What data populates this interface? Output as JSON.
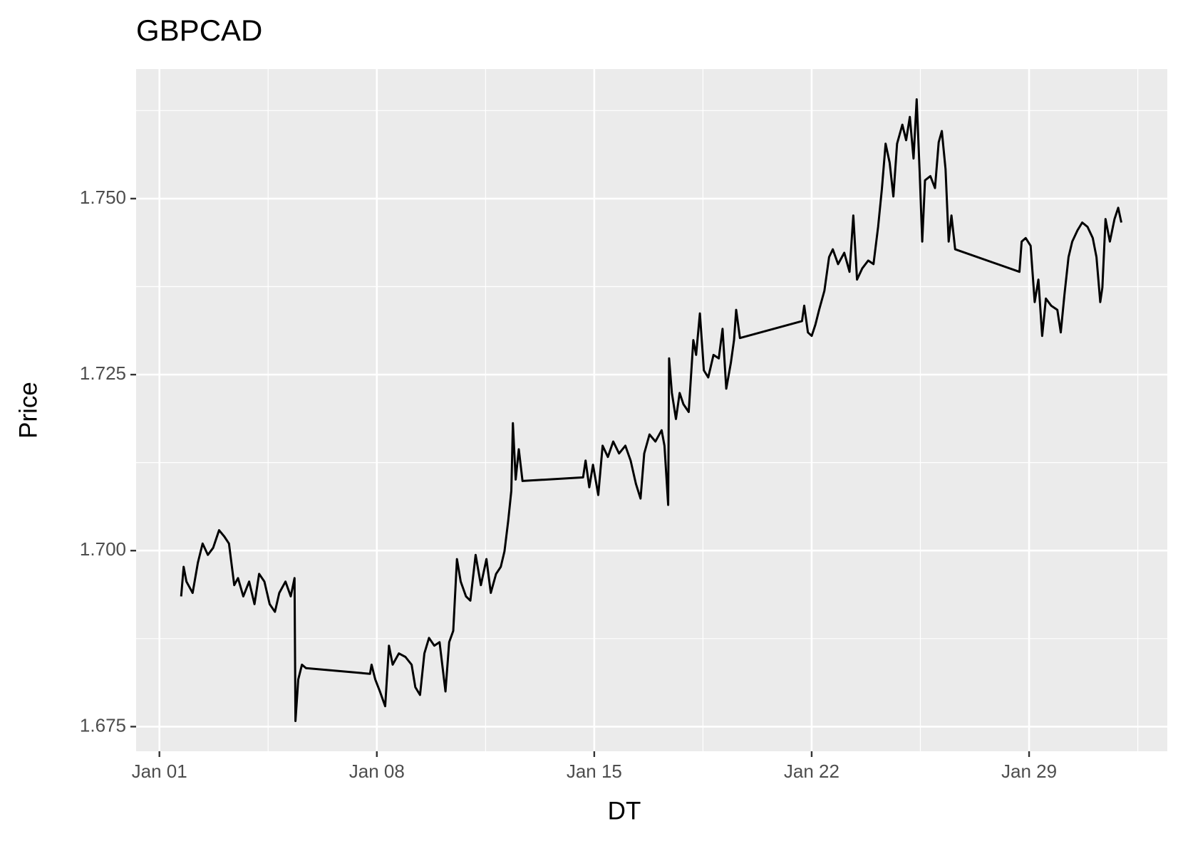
{
  "chart_data": {
    "type": "line",
    "title": "GBPCAD",
    "x_label": "DT",
    "y_label": "Price",
    "color": "#000000",
    "grid": true,
    "xlim": [
      0.25,
      33.45
    ],
    "ylim": [
      1.6715,
      1.7684
    ],
    "xticks": [
      {
        "value": 1,
        "label": "Jan 01"
      },
      {
        "value": 8,
        "label": "Jan 08"
      },
      {
        "value": 15,
        "label": "Jan 15"
      },
      {
        "value": 22,
        "label": "Jan 22"
      },
      {
        "value": 29,
        "label": "Jan 29"
      }
    ],
    "yticks": [
      {
        "value": 1.675,
        "label": "1.675"
      },
      {
        "value": 1.7,
        "label": "1.700"
      },
      {
        "value": 1.725,
        "label": "1.725"
      },
      {
        "value": 1.75,
        "label": "1.750"
      }
    ],
    "x": [
      1.7,
      1.78,
      1.87,
      2.07,
      2.24,
      2.39,
      2.56,
      2.73,
      2.92,
      3.09,
      3.24,
      3.41,
      3.53,
      3.7,
      3.89,
      4.06,
      4.21,
      4.38,
      4.55,
      4.72,
      4.86,
      5.06,
      5.23,
      5.35,
      5.38,
      5.47,
      5.59,
      5.72,
      7.78,
      7.83,
      7.95,
      8.1,
      8.27,
      8.39,
      8.51,
      8.71,
      8.92,
      9.12,
      9.24,
      9.39,
      9.53,
      9.68,
      9.85,
      10.02,
      10.21,
      10.33,
      10.46,
      10.58,
      10.7,
      10.87,
      11.01,
      11.18,
      11.35,
      11.53,
      11.67,
      11.84,
      11.99,
      12.11,
      12.23,
      12.33,
      12.38,
      12.47,
      12.57,
      12.69,
      14.64,
      14.72,
      14.84,
      14.96,
      15.13,
      15.27,
      15.44,
      15.61,
      15.8,
      16.0,
      16.17,
      16.34,
      16.49,
      16.61,
      16.78,
      16.97,
      17.17,
      17.26,
      17.38,
      17.41,
      17.5,
      17.63,
      17.75,
      17.87,
      18.04,
      18.19,
      18.28,
      18.4,
      18.53,
      18.67,
      18.84,
      19.01,
      19.13,
      19.25,
      19.4,
      19.5,
      19.57,
      19.69,
      21.69,
      21.76,
      21.88,
      22.0,
      22.12,
      22.24,
      22.41,
      22.56,
      22.68,
      22.85,
      23.05,
      23.22,
      23.34,
      23.46,
      23.63,
      23.82,
      23.99,
      24.14,
      24.26,
      24.38,
      24.51,
      24.63,
      24.75,
      24.92,
      25.04,
      25.16,
      25.28,
      25.38,
      25.48,
      25.56,
      25.65,
      25.82,
      25.97,
      26.09,
      26.19,
      26.31,
      26.41,
      26.5,
      26.62,
      28.69,
      28.76,
      28.89,
      29.05,
      29.18,
      29.3,
      29.42,
      29.54,
      29.71,
      29.91,
      30.02,
      30.14,
      30.27,
      30.39,
      30.56,
      30.71,
      30.88,
      31.05,
      31.17,
      31.29,
      31.36,
      31.46,
      31.6,
      31.75,
      31.87,
      31.97
    ],
    "values": [
      1.6935,
      1.6977,
      1.6956,
      1.694,
      1.6983,
      1.701,
      1.6994,
      1.7004,
      1.7029,
      1.702,
      1.701,
      1.6951,
      1.6961,
      1.6935,
      1.6956,
      1.6924,
      1.6967,
      1.6956,
      1.6924,
      1.6913,
      1.694,
      1.6956,
      1.6935,
      1.6961,
      1.6758,
      1.6817,
      1.6838,
      1.6833,
      1.6825,
      1.6838,
      1.6817,
      1.68,
      1.6779,
      1.6865,
      1.6838,
      1.6854,
      1.6849,
      1.6838,
      1.6806,
      1.6795,
      1.6854,
      1.6876,
      1.6865,
      1.687,
      1.68,
      1.687,
      1.6886,
      1.6988,
      1.6956,
      1.6935,
      1.6929,
      1.6994,
      1.6951,
      1.6988,
      1.694,
      1.6967,
      1.6977,
      1.6999,
      1.7042,
      1.7085,
      1.7181,
      1.7101,
      1.7144,
      1.7099,
      1.7104,
      1.7128,
      1.709,
      1.7122,
      1.7079,
      1.7149,
      1.7133,
      1.7155,
      1.7138,
      1.7149,
      1.7128,
      1.7095,
      1.7074,
      1.7138,
      1.7165,
      1.7155,
      1.7171,
      1.7149,
      1.7065,
      1.7273,
      1.7224,
      1.7187,
      1.7224,
      1.7208,
      1.7197,
      1.7299,
      1.7278,
      1.7337,
      1.7256,
      1.7246,
      1.7278,
      1.7273,
      1.7315,
      1.723,
      1.7267,
      1.7299,
      1.7342,
      1.7302,
      1.7326,
      1.7348,
      1.731,
      1.7305,
      1.7321,
      1.7342,
      1.7369,
      1.7417,
      1.7428,
      1.7407,
      1.7423,
      1.7396,
      1.7476,
      1.7385,
      1.7401,
      1.7412,
      1.7407,
      1.746,
      1.7514,
      1.7578,
      1.7551,
      1.7503,
      1.7578,
      1.7605,
      1.7583,
      1.7616,
      1.7557,
      1.7641,
      1.7535,
      1.7439,
      1.7526,
      1.7532,
      1.7515,
      1.758,
      1.7596,
      1.7542,
      1.7439,
      1.7476,
      1.7428,
      1.7396,
      1.7439,
      1.7444,
      1.7433,
      1.7353,
      1.7385,
      1.7305,
      1.7358,
      1.7348,
      1.7342,
      1.731,
      1.7364,
      1.7417,
      1.7439,
      1.7455,
      1.7466,
      1.746,
      1.7444,
      1.7417,
      1.7353,
      1.7374,
      1.7471,
      1.7439,
      1.7471,
      1.7487,
      1.7466
    ]
  }
}
